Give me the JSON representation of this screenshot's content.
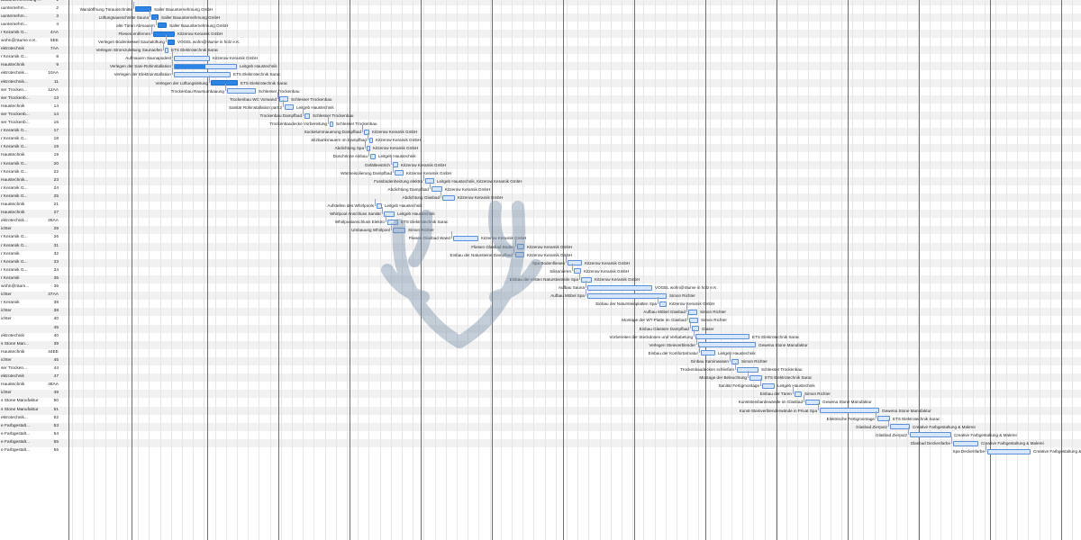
{
  "rows": [
    {
      "res": "Bauunternehmung ...",
      "id": "1",
      "task": "",
      "name": ""
    },
    {
      "res": "uunternehm...",
      "id": "2",
      "task": "Wandöffnung Türausschnitte",
      "name": "Saller Bauunternehmung GmbH"
    },
    {
      "res": "uunternehm...",
      "id": "3",
      "task": "Lüftungsausschnitte Sauna",
      "name": "Saller Bauunternehmung GmbH"
    },
    {
      "res": "uunternehm...",
      "id": "4",
      "task": "alte Türen Abmauern",
      "name": "Saller Bauunternehmung GmbH"
    },
    {
      "res": "r Keramik G...",
      "id": "4AA",
      "task": "Fliesen entfernen",
      "name": "Kitzerow Keramik GmbH"
    },
    {
      "res": "wohn@räume e.K.",
      "id": "5EE",
      "task": "Verlegen Bodenkessel Saunalüftung",
      "name": "VOGEL wohn@räume in holz e.K."
    },
    {
      "res": "ektrotechnik",
      "id": "7AA",
      "task": "Verlegen Stromzuleitung Saunaofen",
      "name": "ETS Elektrotechnik Sarac"
    },
    {
      "res": "r Keramik G...",
      "id": "8",
      "task": "Aufmauern Saunapodest",
      "name": "Kitzerow Keramik GmbH"
    },
    {
      "res": "Haustechnik",
      "id": "9",
      "task": "Verlegen der Sani-Rohinstallation",
      "name": "Leitgeb Haustechnik"
    },
    {
      "res": "ektrotechnik...",
      "id": "10AA",
      "task": "Verlegen der Elektroinstallation",
      "name": "ETS Elektrotechnik Sarac"
    },
    {
      "res": "ektrotechnik...",
      "id": "11",
      "task": "Verlegen der Lüftungsleitung",
      "name": "ETS Elektrotechnik Sarac"
    },
    {
      "res": "ser Trocken...",
      "id": "12AA",
      "task": "Trockenbau Raumumbauung",
      "name": "Schlesser Trockenbau"
    },
    {
      "res": "ser Trockenb...",
      "id": "13",
      "task": "Trockenbau WC Vorwand",
      "name": "Schlesser Trockenbau"
    },
    {
      "res": "Haustechnik",
      "id": "14",
      "task": "Sanitär Rohinstallation part 2",
      "name": "Leitgeb Haustechnik"
    },
    {
      "res": "ser Trockenb...",
      "id": "14",
      "task": "Trockenbau Dampfbad",
      "name": "Schlesser Trockenbau"
    },
    {
      "res": "ser Trockenb...",
      "id": "16",
      "task": "Trockenbaudecke Vorbereitung",
      "name": "Schlesser Trockenbau"
    },
    {
      "res": "r Keramik G...",
      "id": "17",
      "task": "Sockelummauerung Dampfbad",
      "name": "Kitzerow Keramik GmbH"
    },
    {
      "res": "r Keramik G...",
      "id": "18",
      "task": "Sitzbankmauern im Dampfbad",
      "name": "Kitzerow Keramik GmbH"
    },
    {
      "res": "r Keramik G...",
      "id": "19",
      "task": "Abdichtung Spa",
      "name": "Kitzerow Keramik GmbH"
    },
    {
      "res": "Haustechnik",
      "id": "19",
      "task": "Duschrinne einbau",
      "name": "Leitgeb Haustechnik"
    },
    {
      "res": "r Keramik G...",
      "id": "20",
      "task": "Gefälleestrich",
      "name": "Kitzerow Keramik GmbH"
    },
    {
      "res": "r Keramik G...",
      "id": "22",
      "task": "Wärmeisolierung Dampfbad",
      "name": "Kitzerow Keramik GmbH"
    },
    {
      "res": "Haustechnik...",
      "id": "23",
      "task": "Fussbodenheizung elektro",
      "name": "Leitgeb Haustechnik, Kitzerow Keramik GmbH"
    },
    {
      "res": "r Keramik G...",
      "id": "24",
      "task": "Abdichtung Dampfbad",
      "name": "Kitzerow Keramik GmbH"
    },
    {
      "res": "r Keramik G...",
      "id": "25",
      "task": "Abdichtung Glasbad",
      "name": "Kitzerow Keramik GmbH"
    },
    {
      "res": "Haustechnik",
      "id": "21",
      "task": "Aufstellen des Whirlpools",
      "name": "Leitgeb Haustechnik"
    },
    {
      "res": "Haustechnik",
      "id": "27",
      "task": "Whirlpool Anschluss Sanitär",
      "name": "Leitgeb Haustechnik"
    },
    {
      "res": "ektrotechnik...",
      "id": "28AA",
      "task": "Whirlpoolanschluss Elektro",
      "name": "ETS Elektrotechnik Sarac"
    },
    {
      "res": "ichter",
      "id": "29",
      "task": "Umbauung Whirlpool",
      "name": "Simon Richter"
    },
    {
      "res": "r Keramik G...",
      "id": "26",
      "task": "Fliesen Glasbad Wand",
      "name": "Kitzerow Keramik GmbH"
    },
    {
      "res": "r Keramik G...",
      "id": "31",
      "task": "Fliesen Glasbad Boden",
      "name": "Kitzerow Keramik GmbH"
    },
    {
      "res": "r Keramik",
      "id": "32",
      "task": "Einbau der Natursteine Dampfbad",
      "name": "Kitzerow Keramik GmbH"
    },
    {
      "res": "r Keramik G...",
      "id": "33",
      "task": "Spa Bodenfliesen",
      "name": "Kitzerow Keramik GmbH"
    },
    {
      "res": "r Keramik G...",
      "id": "34",
      "task": "Silisonieren",
      "name": "Kitzerow Keramik GmbH"
    },
    {
      "res": "r Keramik",
      "id": "35",
      "task": "Einbau der ersten Natursteinteile Spa",
      "name": "Kitzerow Keramik GmbH"
    },
    {
      "res": "wohn@räum...",
      "id": "36",
      "task": "Aufbau Sauna",
      "name": "VOGEL wohn@räume in holz e.K."
    },
    {
      "res": "ichter",
      "id": "37AA",
      "task": "Aufbau Möbel Spa",
      "name": "Simon Richter"
    },
    {
      "res": "r Keramik",
      "id": "38",
      "task": "Einbau der Natursteinplatten Spa",
      "name": "Kitzerow Keramik GmbH"
    },
    {
      "res": "ichter",
      "id": "38",
      "task": "Aufbau Möbel Glasbad",
      "name": "Simon Richter"
    },
    {
      "res": "ichter",
      "id": "40",
      "task": "Montage der WT-Platte im Glasbad",
      "name": "Simon Richter"
    },
    {
      "res": "",
      "id": "45",
      "task": "Einbau Glastüre Dampfbad",
      "name": "Glaser"
    },
    {
      "res": "ektrotechnik",
      "id": "40",
      "task": "Vorbereiten der Steckdosen und Verkabelung",
      "name": "ETS Elektrotechnik Sarac"
    },
    {
      "res": "s Stone Man...",
      "id": "39",
      "task": "Verlegen Steinverblender",
      "name": "Gewena Stone Manufaktur"
    },
    {
      "res": "Haustechnik",
      "id": "44EE",
      "task": "Einbau der Komfortarmatur",
      "name": "Leitgeb Haustechnik"
    },
    {
      "res": "ichter",
      "id": "45",
      "task": "Einbau Kaminwasen",
      "name": "Simon Richter"
    },
    {
      "res": "ser Trocken...",
      "id": "44",
      "task": "Trockenbaudecken schließen",
      "name": "Schlesser Trockenbau"
    },
    {
      "res": "ektrotechnik",
      "id": "47",
      "task": "Montage der Beleuchtung",
      "name": "ETS Elektrotechnik Sarac"
    },
    {
      "res": "Haustechnik",
      "id": "48AA",
      "task": "Sanitär Fertigmontage",
      "name": "Leitgeb Haustechnik"
    },
    {
      "res": "ichter",
      "id": "49",
      "task": "Einbau der Türen",
      "name": "Simon Richter"
    },
    {
      "res": "s Stone Manufaktur",
      "id": "50",
      "task": "Kunststeinbardewände im Glasbad",
      "name": "Gewena Stone Manufaktur"
    },
    {
      "res": "s Stone Manufaktur",
      "id": "51",
      "task": "Kunst-Steinverblenderwände in Privat Spa",
      "name": "Gewena Stone Manufaktur"
    },
    {
      "res": "ektrotechnik...",
      "id": "52",
      "task": "Elektrische Fertigmontage",
      "name": "ETS Elektrotechnik Sarac"
    },
    {
      "res": "e Farbgestalt...",
      "id": "53",
      "task": "Glasbad Zierputz",
      "name": "Creative Farbgestaltung & Malerei"
    },
    {
      "res": "e Farbgestalt...",
      "id": "54",
      "task": "Glasbad Zierputz",
      "name": "Creative Farbgestaltung & Malerei"
    },
    {
      "res": "e Farbgestalt...",
      "id": "55",
      "task": "Glasbad Deckenfarbe",
      "name": "Creative Farbgestaltung & Malerei"
    },
    {
      "res": "e Farbgestalt...",
      "id": "56",
      "task": "Spa Deckenfarbe",
      "name": "Creative Farbgestaltung & Malerei"
    }
  ],
  "colors": {
    "bar_fill": "#d6e6fb",
    "bar_border": "#5b8fd6",
    "bar_progress": "#2b84e6",
    "row_stripe": "#f1f1f1",
    "grid_major": "#6f6f6f",
    "connector": "#9aa6b8"
  },
  "icons": {
    "watermark": "antler-logo-watermark"
  }
}
